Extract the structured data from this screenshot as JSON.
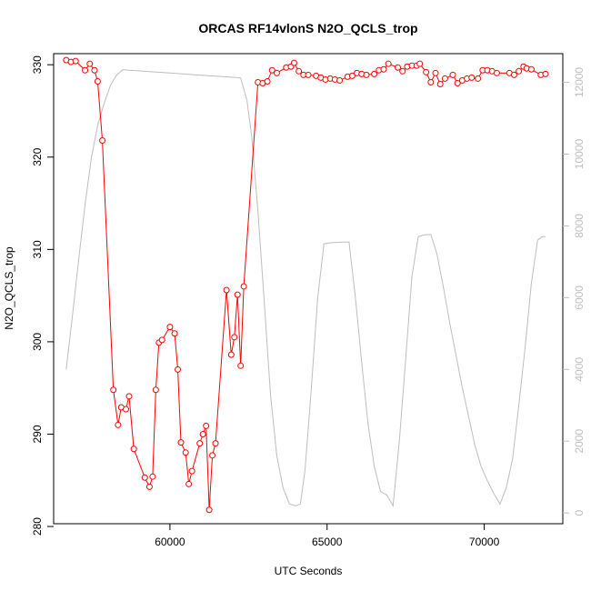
{
  "chart_data": {
    "type": "line",
    "title": "ORCAS RF14vlonS N2O_QCLS_trop",
    "xlabel": "UTC Seconds",
    "ylabel": "N2O_QCLS_trop",
    "xlim": [
      56300,
      72500
    ],
    "ylim": [
      280.3,
      331.2
    ],
    "y2lim": [
      -300,
      12800
    ],
    "x_ticks": [
      60000,
      65000,
      70000
    ],
    "y_ticks": [
      280,
      290,
      300,
      310,
      320,
      330
    ],
    "y2_ticks": [
      0,
      2000,
      4000,
      6000,
      8000,
      10000,
      12000
    ],
    "grid": false,
    "colors": {
      "series": "#ff0000",
      "secondary": "#bebebe",
      "axis": "#000000"
    },
    "series": [
      {
        "marker": "open-circle",
        "axis": "left",
        "x": [
          56700,
          56850,
          57000,
          57300,
          57450,
          57600,
          57700,
          57850,
          58200,
          58350,
          58450,
          58600,
          58700,
          58850,
          59200,
          59350,
          59450,
          59550,
          59650,
          59750,
          60000,
          60150,
          60250,
          60350,
          60500,
          60600,
          60700,
          60950,
          61050,
          61150,
          61250,
          61350,
          61450,
          61800,
          61950,
          62050,
          62150,
          62250,
          62350,
          62800,
          62950,
          63100,
          63250,
          63400,
          63700,
          63850,
          63950,
          64100,
          64250,
          64400,
          64650,
          64800,
          64950,
          65100,
          65250,
          65400,
          65650,
          65800,
          65950,
          66100,
          66250,
          66500,
          66650,
          66800,
          66950,
          67250,
          67400,
          67550,
          67700,
          67850,
          67950,
          68150,
          68300,
          68450,
          68600,
          68750,
          69000,
          69150,
          69300,
          69450,
          69600,
          69800,
          69950,
          70100,
          70250,
          70400,
          70800,
          70950,
          71100,
          71250,
          71350,
          71500,
          71800,
          71950
        ],
        "y": [
          330.5,
          330.3,
          330.4,
          329.4,
          330.1,
          329.4,
          328.2,
          321.8,
          294.8,
          291.0,
          292.9,
          292.7,
          294.1,
          288.4,
          285.3,
          284.3,
          285.4,
          294.8,
          299.9,
          300.2,
          301.6,
          300.9,
          297.0,
          289.1,
          288.0,
          284.6,
          286.0,
          289.0,
          290.0,
          290.9,
          281.8,
          287.7,
          289.0,
          305.6,
          298.6,
          300.5,
          305.1,
          297.4,
          306.0,
          328.1,
          328.0,
          328.2,
          329.4,
          329.1,
          329.7,
          329.8,
          330.2,
          329.3,
          328.9,
          328.9,
          328.8,
          328.6,
          328.4,
          328.5,
          328.4,
          328.3,
          328.7,
          328.8,
          329.1,
          329.0,
          328.9,
          329.0,
          329.4,
          329.5,
          330.1,
          329.7,
          329.3,
          329.8,
          329.9,
          329.9,
          330.1,
          329.2,
          328.1,
          329.1,
          327.9,
          328.5,
          328.9,
          328.0,
          328.3,
          328.5,
          328.6,
          328.5,
          329.4,
          329.4,
          329.3,
          329.1,
          329.1,
          328.9,
          329.3,
          329.8,
          329.6,
          329.5,
          328.9,
          329.0
        ]
      },
      {
        "axis": "right",
        "x": [
          56700,
          56900,
          57100,
          57300,
          57500,
          57700,
          57900,
          58100,
          58300,
          58500,
          59000,
          59500,
          60000,
          60500,
          61000,
          61500,
          62000,
          62250,
          62450,
          62600,
          62800,
          63000,
          63200,
          63400,
          63600,
          63800,
          64000,
          64150,
          64300,
          64500,
          64700,
          64900,
          65100,
          65300,
          65500,
          65700,
          65900,
          66100,
          66300,
          66500,
          66700,
          66900,
          67100,
          67300,
          67500,
          67700,
          67900,
          68100,
          68300,
          68500,
          68700,
          68900,
          69100,
          69300,
          69500,
          69700,
          69900,
          70100,
          70300,
          70500,
          70700,
          70900,
          71100,
          71300,
          71500,
          71700,
          71850,
          71950
        ],
        "y": [
          4000,
          5500,
          7100,
          8600,
          9900,
          10800,
          11400,
          11900,
          12200,
          12350,
          12320,
          12290,
          12260,
          12230,
          12200,
          12170,
          12140,
          12120,
          11500,
          10500,
          8400,
          5900,
          3300,
          1600,
          700,
          250,
          200,
          250,
          1200,
          3500,
          6000,
          7500,
          7530,
          7540,
          7550,
          7550,
          6000,
          4200,
          2500,
          1300,
          600,
          500,
          200,
          2000,
          4300,
          6600,
          7700,
          7750,
          7760,
          7200,
          6300,
          5300,
          4400,
          3500,
          2700,
          1900,
          1300,
          900,
          550,
          250,
          700,
          1500,
          3000,
          4600,
          6400,
          7600,
          7700,
          7700
        ]
      }
    ]
  }
}
